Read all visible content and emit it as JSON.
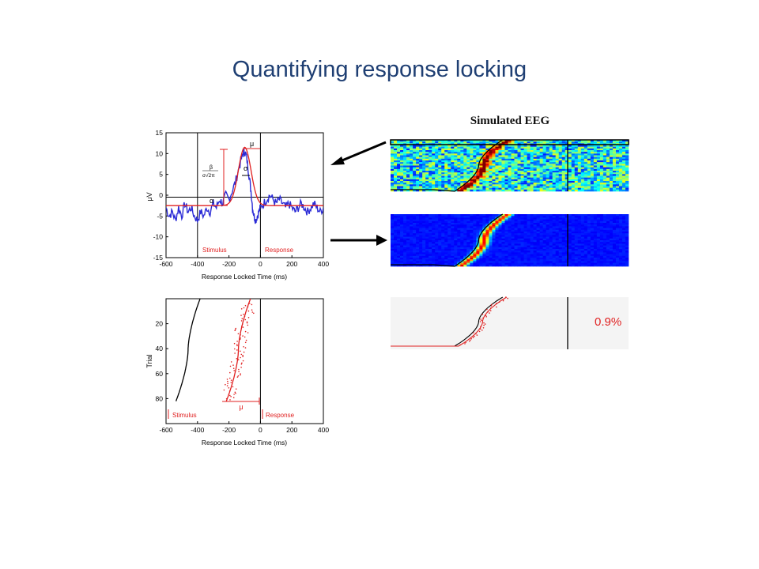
{
  "slide": {
    "title": "Quantifying response locking",
    "eeg_label": "Simulated EEG",
    "percent_label": "0.9%"
  },
  "chart_data": [
    {
      "type": "line",
      "panel": "erp",
      "xlabel": "Response Locked Time (ms)",
      "ylabel": "μV",
      "xlim": [
        -600,
        400
      ],
      "ylim": [
        -15,
        15
      ],
      "xticks": [
        -600,
        -400,
        -200,
        0,
        200,
        400
      ],
      "yticks": [
        15,
        10,
        5,
        0,
        -5,
        -10,
        -15
      ],
      "annotations": {
        "stimulus": "Stimulus",
        "response": "Response",
        "alpha": "α",
        "mu": "μ",
        "sigma": "σ",
        "beta": "β",
        "formula_den": "σ√2π"
      },
      "series": [
        {
          "role": "measured",
          "color": "#2b2bd6",
          "x": [
            -600,
            -580,
            -560,
            -540,
            -520,
            -500,
            -480,
            -460,
            -440,
            -420,
            -400,
            -380,
            -360,
            -340,
            -320,
            -300,
            -280,
            -260,
            -240,
            -220,
            -200,
            -180,
            -160,
            -140,
            -120,
            -110,
            -100,
            -90,
            -80,
            -70,
            -60,
            -50,
            -40,
            -30,
            -20,
            -10,
            0,
            20,
            40,
            60,
            80,
            100,
            120,
            140,
            160,
            180,
            200,
            220,
            240,
            260,
            280,
            300,
            320,
            340,
            360,
            380,
            400
          ],
          "y": [
            -3,
            -5,
            -4,
            -6,
            -3,
            -5,
            -2,
            -4,
            -3,
            -5,
            -6,
            -4,
            -5,
            -3,
            -4,
            -2,
            -3,
            -1,
            -2,
            0,
            -1,
            1,
            3,
            6,
            9,
            10,
            10.5,
            9.5,
            7,
            4,
            1,
            -3,
            -5,
            -6,
            -5,
            -4,
            -3,
            -2,
            -1,
            0,
            -1,
            -2,
            -1,
            -2,
            -3,
            -2,
            -3,
            -4,
            -3,
            -2,
            -3,
            -4,
            -3,
            -2,
            -3,
            -4,
            -3
          ]
        },
        {
          "role": "fit",
          "color": "#e02020",
          "alpha": -2.5,
          "mu": -100,
          "sigma": 40,
          "peak": 11.5
        }
      ]
    },
    {
      "type": "scatter",
      "panel": "trials",
      "xlabel": "Response Locked Time (ms)",
      "ylabel": "Trial",
      "xlim": [
        -600,
        400
      ],
      "ylim": [
        100,
        0
      ],
      "xticks": [
        -600,
        -400,
        -200,
        0,
        200,
        400
      ],
      "yticks": [
        20,
        40,
        60,
        80
      ],
      "annotations": {
        "stimulus": "Stimulus",
        "response": "Response",
        "mu": "μ"
      },
      "stimulus_curve": {
        "color": "#000000",
        "center_ms": -460,
        "spread_ms": 35
      },
      "fit_curve": {
        "color": "#e02020",
        "center_ms": -140,
        "spread_ms": 35
      },
      "mu_ms": -140
    },
    {
      "type": "heatmap",
      "panel": "simulated-eeg-raw",
      "colormap": "jet",
      "response_marker_fraction": 0.74
    },
    {
      "type": "heatmap",
      "panel": "simulated-eeg-model",
      "colormap": "jet",
      "response_marker_fraction": 0.74
    },
    {
      "type": "line",
      "panel": "overlay",
      "series": [
        {
          "role": "black-curve",
          "color": "#000000"
        },
        {
          "role": "red-curve",
          "color": "#e02020"
        }
      ],
      "label": "0.9%"
    }
  ]
}
